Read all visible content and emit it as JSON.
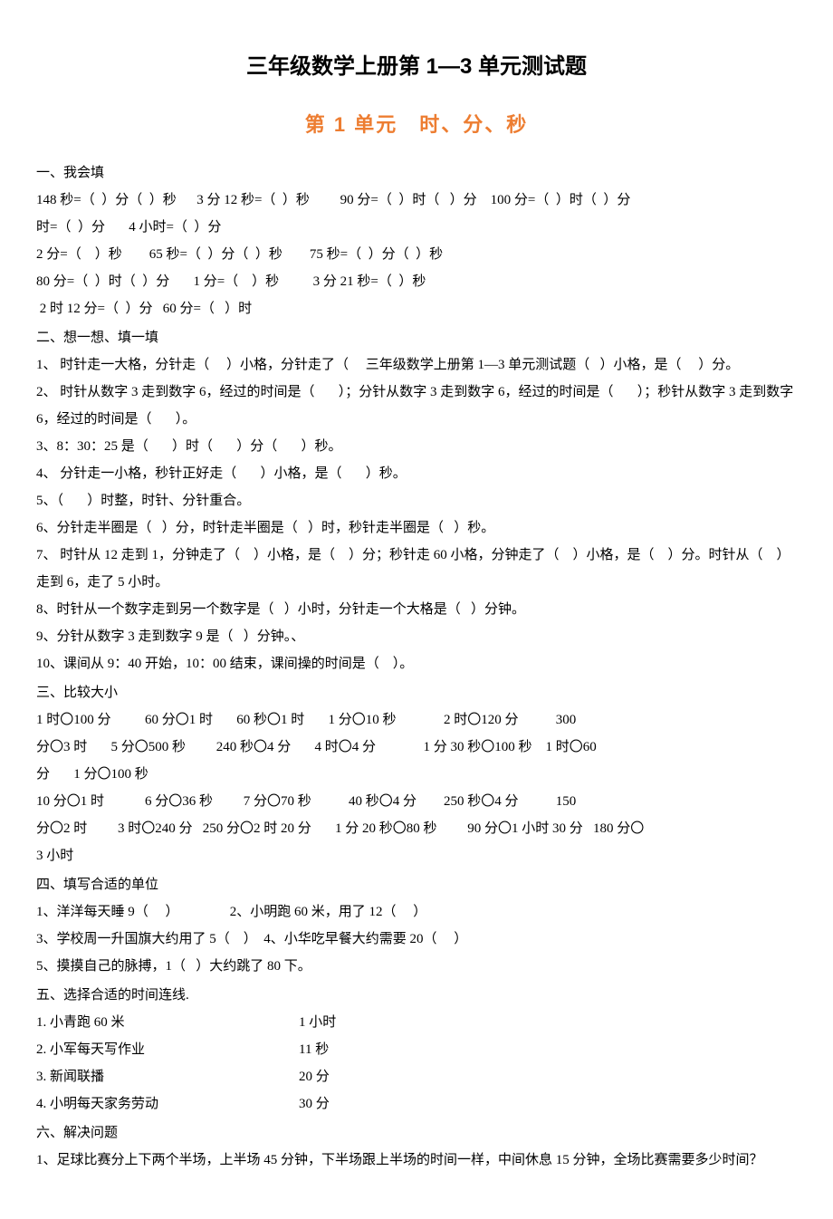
{
  "title": "三年级数学上册第 1—3 单元测试题",
  "subtitle": "第 1 单元　时、分、秒",
  "s1": {
    "head": "一、我会填",
    "l1": "148 秒=（  ）分（  ）秒      3 分 12 秒=（  ）秒         90 分=（  ）时（   ）分    100 分=（  ）时（  ）分",
    "l2": "时=（  ）分       4 小时=（  ）分",
    "l3": "2 分=（    ）秒        65 秒=（  ）分（  ）秒        75 秒=（  ）分（  ）秒",
    "l4": "80 分=（  ）时（  ）分       1 分=（    ）秒          3 分 21 秒=（  ）秒",
    "l5": " 2 时 12 分=（  ）分   60 分=（   ）时"
  },
  "s2": {
    "head": "二、想一想、填一填",
    "l1": "1、 时针走一大格，分针走（     ）小格，分针走了（     三年级数学上册第 1—3 单元测试题（   ）小格，是（     ）分。",
    "l2": "2、 时针从数字 3 走到数字 6，经过的时间是（       ）；分针从数字 3 走到数字 6，经过的时间是（       ）；秒针从数字 3 走到数字 6，经过的时间是（       ）。",
    "l3": "3、8：30：25 是（       ）时（       ）分（       ）秒。",
    "l4": "4、 分针走一小格，秒针正好走（       ）小格，是（       ）秒。",
    "l5": "5、（       ）时整，时针、分针重合。",
    "l6": "6、分针走半圈是（   ）分，时针走半圈是（   ）时，秒针走半圈是（   ）秒。",
    "l7": "7、 时针从 12 走到 1，分钟走了（    ）小格，是（    ）分；秒针走 60 小格，分钟走了（    ）小格，是（    ）分。时针从（    ）走到 6，走了 5 小时。",
    "l8": "8、时针从一个数字走到另一个数字是（   ）小时，分针走一个大格是（   ）分钟。",
    "l9": "9、分针从数字 3 走到数字 9 是（   ）分钟。、",
    "l10": "10、课间从 9：40 开始，10：00 结束，课间操的时间是（    ）。"
  },
  "s3": {
    "head": "三、比较大小",
    "l1": "1 时〇100 分          60 分〇1 时       60 秒〇1 时       1 分〇10 秒              2 时〇120 分           300",
    "l2": "分〇3 时       5 分〇500 秒         240 秒〇4 分       4 时〇4 分              1 分 30 秒〇100 秒    1 时〇60",
    "l3": "分       1 分〇100 秒",
    "l4": "10 分〇1 时            6 分〇36 秒         7 分〇70 秒           40 秒〇4 分        250 秒〇4 分           150",
    "l5": "分〇2 时         3 时〇240 分   250 分〇2 时 20 分       1 分 20 秒〇80 秒         90 分〇1 小时 30 分   180 分〇",
    "l6": "3 小时"
  },
  "s4": {
    "head": "四、填写合适的单位",
    "l1": "1、洋洋每天睡 9（     ）               2、小明跑 60 米，用了 12（     ）",
    "l2": "3、学校周一升国旗大约用了 5（    ）  4、小华吃早餐大约需要 20（     ）",
    "l3": "5、摸摸自己的脉搏，1（   ）大约跳了 80 下。"
  },
  "s5": {
    "head": "五、选择合适的时间连线.",
    "rows": [
      {
        "left": "1. 小青跑 60 米",
        "right": "1 小时"
      },
      {
        "left": "2. 小军每天写作业",
        "right": "11 秒"
      },
      {
        "left": "3. 新闻联播",
        "right": "20 分"
      },
      {
        "left": "4. 小明每天家务劳动",
        "right": "30 分"
      }
    ]
  },
  "s6": {
    "head": "六、解决问题",
    "l1": "1、足球比赛分上下两个半场，上半场 45 分钟，下半场跟上半场的时间一样，中间休息 15 分钟，全场比赛需要多少时间？"
  }
}
